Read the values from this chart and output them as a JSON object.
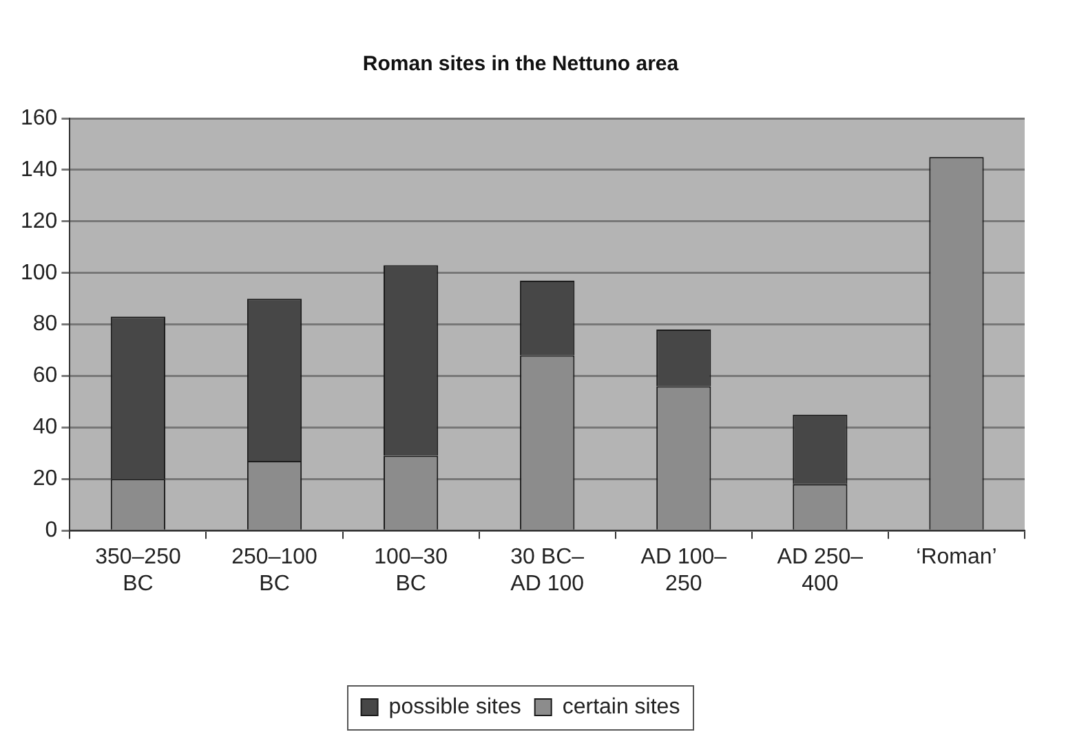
{
  "chart_data": {
    "type": "bar",
    "title": "Roman sites in the Nettuno area",
    "categories": [
      "350–250 BC",
      "250–100 BC",
      "100–30 BC",
      "30 BC–AD 100",
      "AD 100–250",
      "AD 250–400",
      "‘Roman’"
    ],
    "stacked": true,
    "series": [
      {
        "name": "certain sites",
        "color": "#8c8c8c",
        "values": [
          20,
          27,
          29,
          68,
          56,
          18,
          145
        ]
      },
      {
        "name": "possible sites",
        "color": "#474747",
        "values": [
          63,
          63,
          74,
          29,
          22,
          27,
          null
        ]
      }
    ],
    "ylim": [
      0,
      160
    ],
    "yticks": [
      0,
      20,
      40,
      60,
      80,
      100,
      120,
      140,
      160
    ],
    "grid": "y",
    "legend": "bottom"
  }
}
